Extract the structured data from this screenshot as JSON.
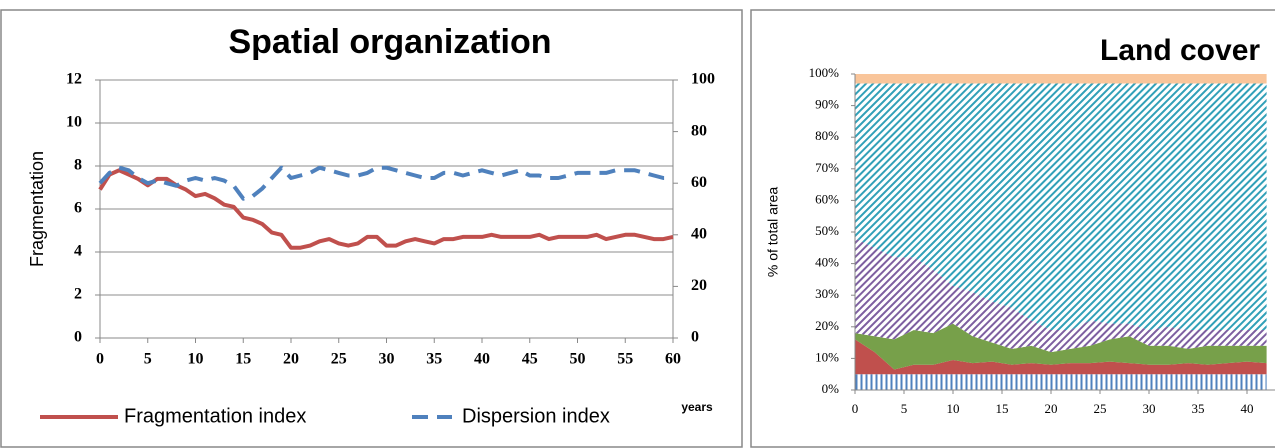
{
  "chart_data": [
    {
      "type": "line",
      "title": "Spatial organization",
      "ylabel": "Fragmentation",
      "xlabel": "years",
      "x": [
        0,
        1,
        2,
        3,
        4,
        5,
        6,
        7,
        8,
        9,
        10,
        11,
        12,
        13,
        14,
        15,
        16,
        17,
        18,
        19,
        20,
        21,
        22,
        23,
        24,
        25,
        26,
        27,
        28,
        29,
        30,
        31,
        32,
        33,
        34,
        35,
        36,
        37,
        38,
        39,
        40,
        41,
        42,
        43,
        44,
        45,
        46,
        47,
        48,
        49,
        50,
        51,
        52,
        53,
        54,
        55,
        56,
        57,
        58,
        59,
        60
      ],
      "series": [
        {
          "name": "Fragmentation index",
          "color": "#c0504d",
          "dash": false,
          "values": [
            6.9,
            7.6,
            7.8,
            7.6,
            7.4,
            7.1,
            7.4,
            7.4,
            7.1,
            6.9,
            6.6,
            6.7,
            6.5,
            6.2,
            6.1,
            5.6,
            5.5,
            5.3,
            4.9,
            4.8,
            4.2,
            4.2,
            4.3,
            4.5,
            4.6,
            4.4,
            4.3,
            4.4,
            4.7,
            4.7,
            4.3,
            4.3,
            4.5,
            4.6,
            4.5,
            4.4,
            4.6,
            4.6,
            4.7,
            4.7,
            4.7,
            4.8,
            4.7,
            4.7,
            4.7,
            4.7,
            4.8,
            4.6,
            4.7,
            4.7,
            4.7,
            4.7,
            4.8,
            4.6,
            4.7,
            4.8,
            4.8,
            4.7,
            4.6,
            4.6,
            4.7
          ]
        },
        {
          "name": "Dispersion index",
          "color": "#4f81bd",
          "dash": true,
          "axis": "y2",
          "values": [
            60,
            64,
            66,
            65,
            62,
            60,
            61,
            60,
            59,
            61,
            62,
            61,
            62,
            61,
            59,
            54,
            55,
            58,
            62,
            66,
            62,
            63,
            64,
            66,
            65,
            64,
            63,
            63,
            64,
            66,
            66,
            65,
            64,
            63,
            62,
            62,
            64,
            64,
            63,
            64,
            65,
            64,
            63,
            64,
            65,
            63,
            63,
            62,
            62,
            63,
            64,
            64,
            64,
            64,
            65,
            65,
            65,
            64,
            63,
            62,
            62
          ]
        }
      ],
      "xlim": [
        0,
        60
      ],
      "xticks": [
        0,
        5,
        10,
        15,
        20,
        25,
        30,
        35,
        40,
        45,
        50,
        55,
        60
      ],
      "ylim": [
        0,
        12
      ],
      "yticks": [
        0,
        2,
        4,
        6,
        8,
        10,
        12
      ],
      "y2lim": [
        0,
        100
      ],
      "y2ticks": [
        0,
        20,
        40,
        60,
        80,
        100
      ],
      "grid": true,
      "legend": "bottom"
    },
    {
      "type": "area",
      "stacked": true,
      "title": "Land cover",
      "ylabel": "% of total area",
      "x": [
        0,
        2,
        4,
        6,
        8,
        10,
        12,
        14,
        16,
        18,
        20,
        22,
        24,
        26,
        28,
        30,
        32,
        34,
        36,
        38,
        40,
        42
      ],
      "series": [
        {
          "color": "#4f81bd",
          "hatch": "vertical",
          "values": [
            5,
            5,
            5,
            5,
            5,
            5,
            5,
            5,
            5,
            5,
            5,
            5,
            5,
            5,
            5,
            5,
            5,
            5,
            5,
            5,
            5,
            5
          ]
        },
        {
          "color": "#c0504d",
          "hatch": "solid",
          "values": [
            11,
            7,
            1.5,
            3,
            3,
            4.5,
            3.5,
            4,
            3,
            3.5,
            3,
            3.5,
            3.5,
            4,
            3.5,
            3,
            3,
            3.5,
            3,
            3.5,
            4,
            3.5
          ]
        },
        {
          "color": "#77a04a",
          "hatch": "solid",
          "values": [
            2,
            5,
            9.5,
            11,
            10,
            11.5,
            8.5,
            6,
            5,
            5.5,
            4,
            4.5,
            5.5,
            7,
            8.5,
            6,
            6,
            4.5,
            6,
            5.5,
            5,
            5.5
          ]
        },
        {
          "color": "#7d5fa0",
          "hatch": "diagonal",
          "values": [
            30,
            28,
            26,
            23,
            20,
            12,
            14,
            13,
            13,
            8,
            7,
            6,
            8,
            5,
            4,
            5,
            6,
            6,
            5,
            5,
            5,
            5
          ]
        },
        {
          "color": "#31a0b8",
          "hatch": "diagonal",
          "values": [
            49,
            52,
            55,
            55,
            59,
            64,
            66,
            69,
            71,
            75,
            78,
            78,
            75,
            76,
            76,
            78,
            77,
            78,
            78,
            78,
            78,
            78
          ]
        },
        {
          "color": "#f9c59a",
          "hatch": "solid",
          "values": [
            3,
            3,
            3,
            3,
            3,
            3,
            3,
            3,
            3,
            3,
            3,
            3,
            3,
            3,
            3,
            3,
            3,
            3,
            3,
            3,
            3,
            3
          ]
        }
      ],
      "xlim": [
        0,
        60
      ],
      "xticks": [
        0,
        5,
        10,
        15,
        20,
        25,
        30,
        35,
        40
      ],
      "ylim": [
        0,
        100
      ],
      "yticks": [
        {
          "value": 0,
          "label": "0%"
        },
        {
          "value": 10,
          "label": "10%"
        },
        {
          "value": 20,
          "label": "20%"
        },
        {
          "value": 30,
          "label": "30%"
        },
        {
          "value": 40,
          "label": "40%"
        },
        {
          "value": 50,
          "label": "50%"
        },
        {
          "value": 60,
          "label": "60%"
        },
        {
          "value": 70,
          "label": "70%"
        },
        {
          "value": 80,
          "label": "80%"
        },
        {
          "value": 90,
          "label": "90%"
        },
        {
          "value": 100,
          "label": "100%"
        }
      ],
      "grid": false
    }
  ]
}
